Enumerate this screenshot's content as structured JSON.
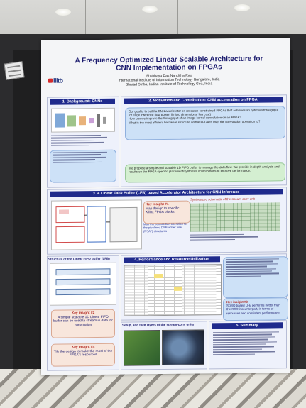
{
  "poster": {
    "title": "A Frequency Optimized Linear Scalable Architecture for CNN Implementation on FPGAs",
    "authors_line1": "Shubhayu Das    Nanditha Rao",
    "authors_line2": "International Institute of Information Technology Bangalore, India",
    "authors_line3": "Sharad Sinha, Indian Institute of Technology Goa, India",
    "logo_text": "iiitb",
    "section1": "1. Background: CNNs",
    "section2": "2. Motivation and Contribution: CNN acceleration on FPGA",
    "section3": "3. A Linear FIFO Buffer (LFB) based Accelerator Architecture for CNN Inference",
    "section3_sub": "Synthesized schematic of the stream-conv unit",
    "structure_label": "Structure of the Linear FIFO buffer (LFB)",
    "section4": "4. Performance and Resource Utilization",
    "section5": "5. Summary",
    "setup_label": "Setup, and tiled layers of the stream-conv units",
    "insight1_title": "Key Insight #1",
    "insight1_text": "Map design to specific Xilinx FPGA blocks",
    "insight1_sub": "Map the convolution operation to the pipelined DSP-adder tree (PSAT) structures",
    "insight2_title": "Key insight #2",
    "insight2_text": "A simple scalable 1D Linear FIFO buffer can be used to stream in data for convolution",
    "insight3_title": "Key insight #3",
    "insight3_text": "SDSO based LFB performs better than the RSSO counterpart, in terms of resources and consistent performance",
    "insight4_title": "Key Insight #4",
    "insight4_text": "Tile the design to make the most of the FPGA's resources",
    "motivation_goal": "Our goal is to build a CNN accelerator on resource constrained FPGAs that achieves an optimum throughput for edge inference (low power, limited dimensions, low cost)",
    "motivation_q1": "How can we improve the throughput of an image kernel convolution on an FPGA?",
    "motivation_q2": "What is the most efficient hardware structure on the FPGA to map the convolution operation to?",
    "contribution": "We propose a simple and scalable 1D FIFO buffer to manage the data flow. We provide in-depth analysis and results on the FPGA-specific placement/synthesis optimizations to improve performance."
  }
}
